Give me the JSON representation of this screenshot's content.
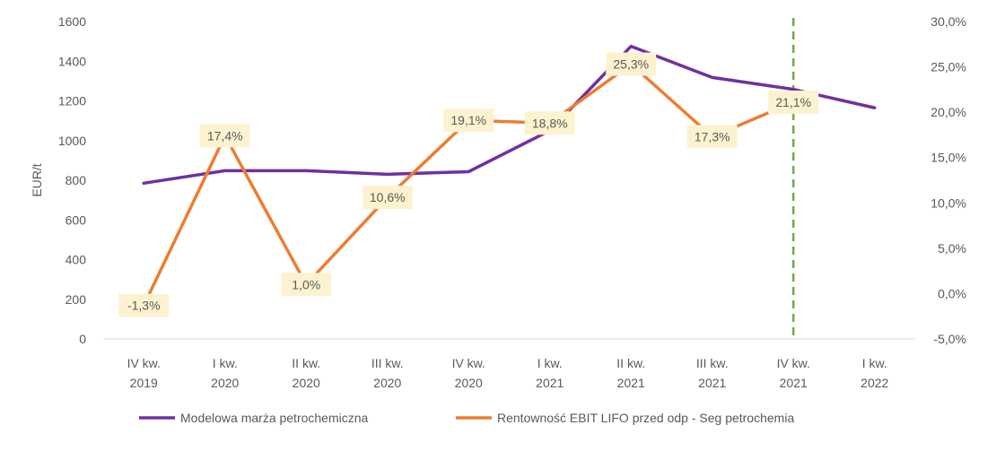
{
  "chart_data": {
    "type": "line",
    "categories": [
      [
        "IV kw.",
        "2019"
      ],
      [
        "I kw.",
        "2020"
      ],
      [
        "II kw.",
        "2020"
      ],
      [
        "III kw.",
        "2020"
      ],
      [
        "IV kw.",
        "2020"
      ],
      [
        "I kw.",
        "2021"
      ],
      [
        "II kw.",
        "2021"
      ],
      [
        "III kw.",
        "2021"
      ],
      [
        "IV kw.",
        "2021"
      ],
      [
        "I kw.",
        "2022"
      ]
    ],
    "ylabel": "EUR/t",
    "y_left": {
      "min": 0,
      "max": 1600,
      "ticks": [
        "0",
        "200",
        "400",
        "600",
        "800",
        "1000",
        "1200",
        "1400",
        "1600"
      ]
    },
    "y_right": {
      "min": -5,
      "max": 30,
      "ticks": [
        "-5,0%",
        "0,0%",
        "5,0%",
        "10,0%",
        "15,0%",
        "20,0%",
        "25,0%",
        "30,0%"
      ]
    },
    "series": [
      {
        "name": "Modelowa marża petrochemiczna",
        "axis": "left",
        "color": "#7030a0",
        "values": [
          785,
          848,
          848,
          830,
          843,
          1050,
          1475,
          1318,
          1258,
          1165
        ]
      },
      {
        "name": "Rentowność EBIT LIFO przed odp - Seg petrochemia",
        "axis": "right",
        "color": "#ed7d31",
        "values": [
          -1.3,
          17.4,
          1.0,
          10.6,
          19.1,
          18.8,
          25.3,
          17.3,
          21.1,
          null
        ],
        "labels": [
          "-1,3%",
          "17,4%",
          "1,0%",
          "10,6%",
          "19,1%",
          "18,8%",
          "25,3%",
          "17,3%",
          "21,1%",
          null
        ]
      }
    ],
    "marker_line": {
      "category_index": 8,
      "color": "#70ad47",
      "style": "dashed"
    },
    "legend_position": "bottom",
    "grid": false
  }
}
